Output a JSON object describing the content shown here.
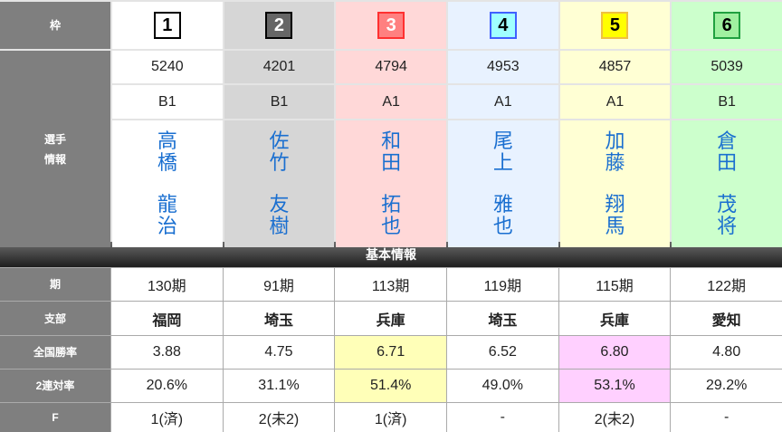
{
  "labels": {
    "frame": "枠",
    "player_info": "選手\n情報",
    "section": "基本情報",
    "term": "期",
    "branch": "支部",
    "national_win_rate": "全国勝率",
    "quinella_rate": "2連対率",
    "f": "F"
  },
  "racers": [
    {
      "frame": "1",
      "badge_bg": "#ffffff",
      "badge_border": "#000000",
      "badge_fg": "#000000",
      "number": "5240",
      "class": "B1",
      "family": "高橋",
      "given": "龍治",
      "term": "130期",
      "branch": "福岡",
      "win_rate": "3.88",
      "quinella": "20.6%",
      "f": "1(済)"
    },
    {
      "frame": "2",
      "badge_bg": "#666666",
      "badge_border": "#000000",
      "badge_fg": "#ffffff",
      "number": "4201",
      "class": "B1",
      "family": "佐竹",
      "given": "友樹",
      "term": "91期",
      "branch": "埼玉",
      "win_rate": "4.75",
      "quinella": "31.1%",
      "f": "2(未2)"
    },
    {
      "frame": "3",
      "badge_bg": "#ff8080",
      "badge_border": "#ff3030",
      "badge_fg": "#ffffff",
      "number": "4794",
      "class": "A1",
      "family": "和田",
      "given": "拓也",
      "term": "113期",
      "branch": "兵庫",
      "win_rate": "6.71",
      "quinella": "51.4%",
      "f": "1(済)",
      "highlight": "hy"
    },
    {
      "frame": "4",
      "badge_bg": "#a0ffff",
      "badge_border": "#4060ff",
      "badge_fg": "#000000",
      "number": "4953",
      "class": "A1",
      "family": "尾上",
      "given": "雅也",
      "term": "119期",
      "branch": "埼玉",
      "win_rate": "6.52",
      "quinella": "49.0%",
      "f": "-"
    },
    {
      "frame": "5",
      "badge_bg": "#ffff00",
      "badge_border": "#f0c040",
      "badge_fg": "#000000",
      "number": "4857",
      "class": "A1",
      "family": "加藤",
      "given": "翔馬",
      "term": "115期",
      "branch": "兵庫",
      "win_rate": "6.80",
      "quinella": "53.1%",
      "f": "2(未2)",
      "highlight": "hp"
    },
    {
      "frame": "6",
      "badge_bg": "#a0f0a0",
      "badge_border": "#20a040",
      "badge_fg": "#000000",
      "number": "5039",
      "class": "B1",
      "family": "倉田",
      "given": "茂将",
      "term": "122期",
      "branch": "愛知",
      "win_rate": "4.80",
      "quinella": "29.2%",
      "f": "-"
    }
  ]
}
